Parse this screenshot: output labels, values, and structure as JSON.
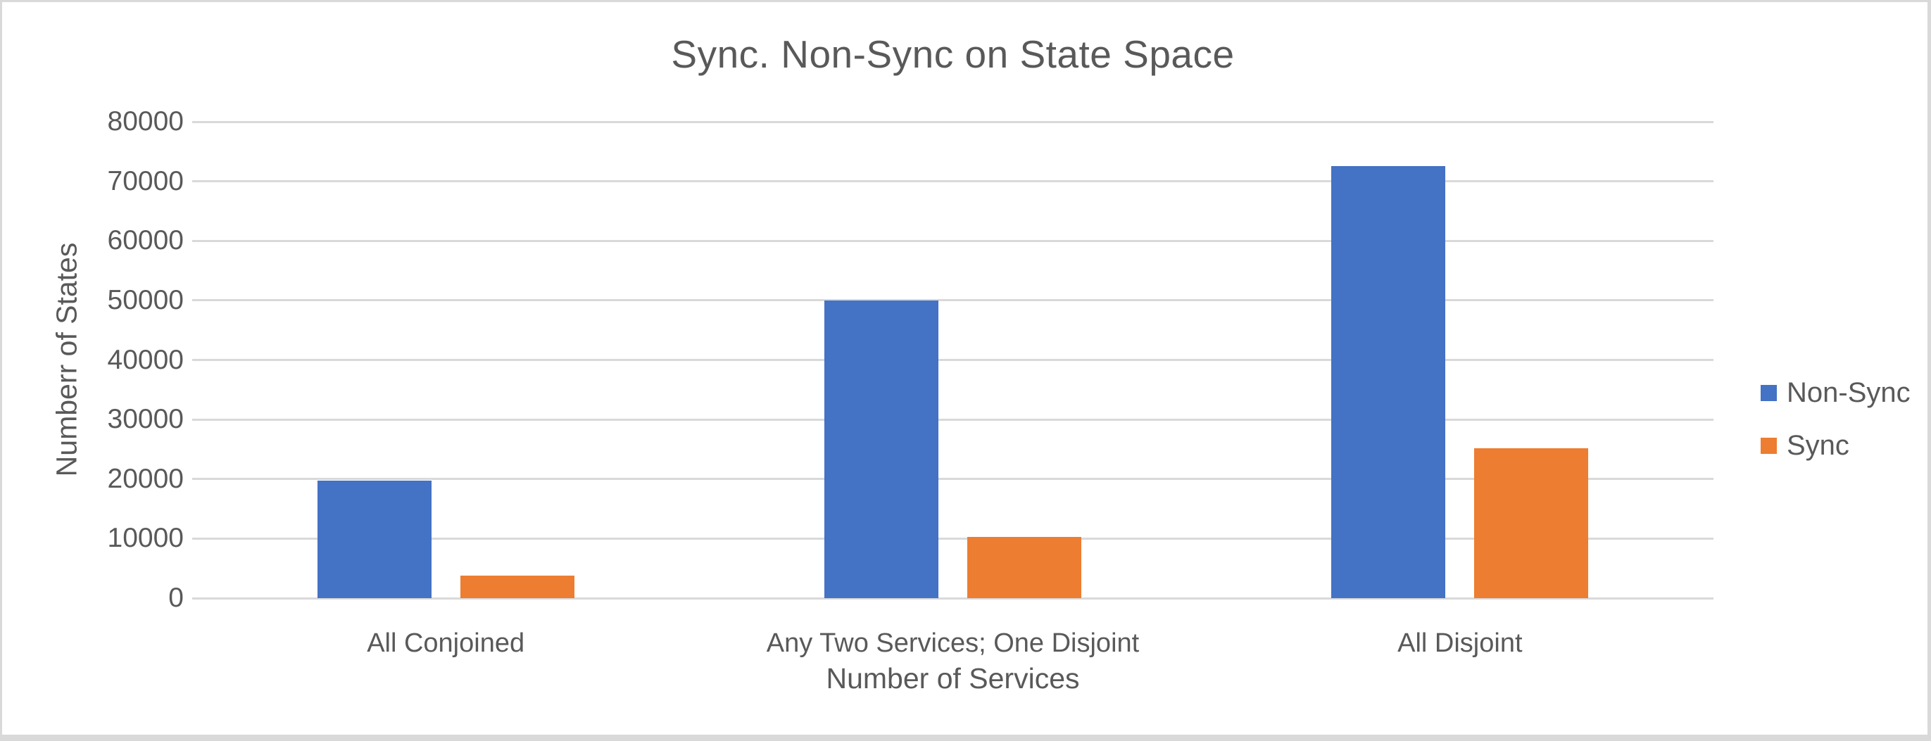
{
  "figure": {
    "title": "Sync. Non-Sync on State Space"
  },
  "chart_data": {
    "type": "bar",
    "title": "Sync. Non-Sync on State Space",
    "xlabel": "Number of Services",
    "ylabel": "Numberr of States",
    "categories": [
      "All Conjoined",
      "Any Two Services; One Disjoint",
      "All Disjoint"
    ],
    "series": [
      {
        "name": "Non-Sync",
        "color": "#4472C4",
        "values": [
          19700,
          50000,
          72500
        ]
      },
      {
        "name": "Sync",
        "color": "#ED7D31",
        "values": [
          3800,
          10300,
          25200
        ]
      }
    ],
    "ylim": [
      0,
      80000
    ],
    "yticks": [
      0,
      10000,
      20000,
      30000,
      40000,
      50000,
      60000,
      70000,
      80000
    ],
    "grid": "horizontal",
    "gridline_color": "#D9D9D9",
    "legend_position": "right",
    "legend_entries": [
      "Non-Sync",
      "Sync"
    ],
    "text_color": "#595959"
  }
}
